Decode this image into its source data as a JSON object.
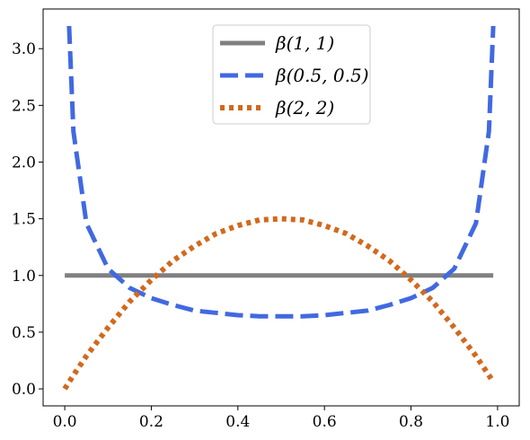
{
  "chart_data": {
    "type": "line",
    "xlim": [
      -0.05,
      1.05
    ],
    "ylim": [
      -0.15,
      3.35
    ],
    "xticks": [
      0.0,
      0.2,
      0.4,
      0.6,
      0.8,
      1.0
    ],
    "xtick_labels": [
      "0.0",
      "0.2",
      "0.4",
      "0.6",
      "0.8",
      "1.0"
    ],
    "yticks": [
      0.0,
      0.5,
      1.0,
      1.5,
      2.0,
      2.5,
      3.0
    ],
    "ytick_labels": [
      "0.0",
      "0.5",
      "1.0",
      "1.5",
      "2.0",
      "2.5",
      "3.0"
    ],
    "grid": false,
    "legend_position": "top-center",
    "x": [
      0.0,
      0.01,
      0.02,
      0.05,
      0.1,
      0.15,
      0.2,
      0.25,
      0.3,
      0.35,
      0.4,
      0.45,
      0.5,
      0.55,
      0.6,
      0.65,
      0.7,
      0.75,
      0.8,
      0.85,
      0.9,
      0.95,
      0.98,
      0.99
    ],
    "series": [
      {
        "name": "β(1, 1)",
        "color": "#808080",
        "style": "solid",
        "values": [
          1.0,
          1.0,
          1.0,
          1.0,
          1.0,
          1.0,
          1.0,
          1.0,
          1.0,
          1.0,
          1.0,
          1.0,
          1.0,
          1.0,
          1.0,
          1.0,
          1.0,
          1.0,
          1.0,
          1.0,
          1.0,
          1.0,
          1.0,
          1.0
        ]
      },
      {
        "name": "β(0.5, 0.5)",
        "color": "#4169e1",
        "style": "dashed",
        "values": [
          null,
          3.2,
          2.27,
          1.46,
          1.06,
          0.89,
          0.8,
          0.74,
          0.69,
          0.67,
          0.65,
          0.64,
          0.64,
          0.64,
          0.65,
          0.67,
          0.69,
          0.74,
          0.8,
          0.89,
          1.06,
          1.46,
          2.27,
          3.2
        ]
      },
      {
        "name": "β(2, 2)",
        "color": "#d2691e",
        "style": "dotted",
        "values": [
          0.0,
          0.06,
          0.12,
          0.29,
          0.54,
          0.77,
          0.96,
          1.13,
          1.26,
          1.37,
          1.44,
          1.49,
          1.5,
          1.49,
          1.44,
          1.37,
          1.26,
          1.13,
          0.96,
          0.77,
          0.54,
          0.29,
          0.12,
          0.06
        ]
      }
    ]
  }
}
